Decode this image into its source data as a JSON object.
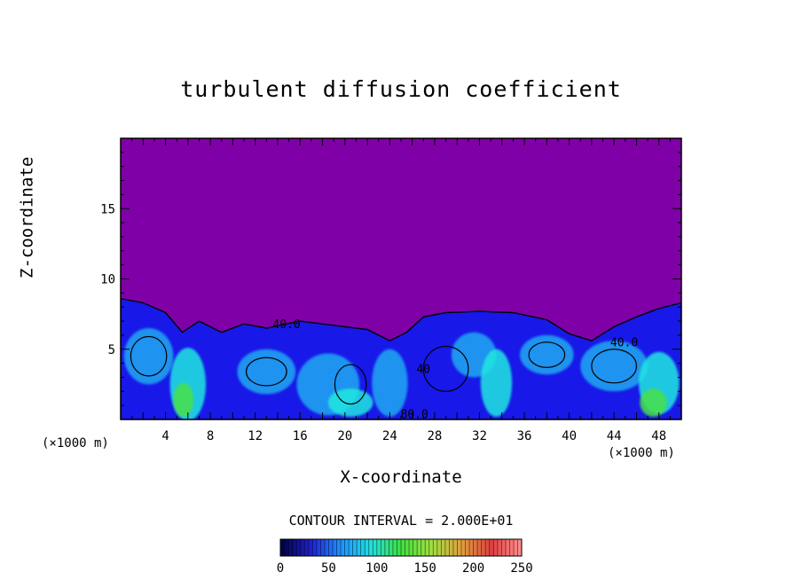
{
  "chart_data": {
    "type": "heatmap",
    "title": "turbulent diffusion coefficient",
    "xlabel": "X-coordinate",
    "ylabel": "Z-coordinate",
    "x_unit_left": "(×1000 m)",
    "x_unit_right": "(×1000 m)",
    "xlim": [
      0,
      50
    ],
    "ylim": [
      0,
      20
    ],
    "x_ticks": [
      4,
      8,
      12,
      16,
      20,
      24,
      28,
      32,
      36,
      40,
      44,
      48
    ],
    "y_ticks": [
      5,
      10,
      15
    ],
    "grid": false,
    "contour_interval_text": "CONTOUR INTERVAL = 2.000E+01",
    "contour_labels": [
      {
        "text": "40.0",
        "x": 14.8,
        "z": 6.5
      },
      {
        "text": "40.0",
        "x": 44.9,
        "z": 5.2
      },
      {
        "text": "40",
        "x": 27.0,
        "z": 3.3
      },
      {
        "text": "80.0",
        "x": 26.2,
        "z": 0.1
      }
    ],
    "colorbar": {
      "min": 0,
      "max": 250,
      "ticks": [
        0,
        50,
        100,
        150,
        200,
        250
      ],
      "colors": [
        "#000040",
        "#2020d0",
        "#2090ff",
        "#20e0e0",
        "#40e040",
        "#a0e040",
        "#e0a040",
        "#e04040",
        "#ff9090"
      ]
    },
    "colors": {
      "background_field": "#8000a8",
      "low_field": "#1818e8",
      "mid_field": "#20a8f0",
      "high_field": "#20e8e0",
      "peak_field": "#48e048"
    }
  }
}
